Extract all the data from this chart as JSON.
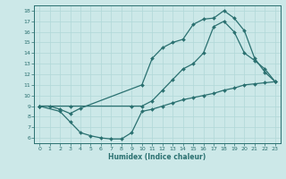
{
  "xlabel": "Humidex (Indice chaleur)",
  "bg_color": "#cce8e8",
  "line_color": "#2a7070",
  "grid_color": "#b0d8d8",
  "xlim": [
    -0.5,
    23.5
  ],
  "ylim": [
    5.5,
    18.5
  ],
  "xticks": [
    0,
    1,
    2,
    3,
    4,
    5,
    6,
    7,
    8,
    9,
    10,
    11,
    12,
    13,
    14,
    15,
    16,
    17,
    18,
    19,
    20,
    21,
    22,
    23
  ],
  "yticks": [
    6,
    7,
    8,
    9,
    10,
    11,
    12,
    13,
    14,
    15,
    16,
    17,
    18
  ],
  "line1_x": [
    0,
    1,
    2,
    3,
    4,
    10,
    11,
    12,
    13,
    14,
    15,
    16,
    17,
    18,
    19,
    20,
    21,
    22,
    23
  ],
  "line1_y": [
    9,
    9.0,
    8.7,
    8.3,
    8.8,
    11.0,
    13.5,
    14.5,
    15.0,
    15.3,
    16.7,
    17.2,
    17.3,
    18.0,
    17.3,
    16.1,
    13.5,
    12.2,
    11.3
  ],
  "line2_x": [
    0,
    3,
    9,
    10,
    11,
    12,
    13,
    14,
    15,
    16,
    17,
    18,
    19,
    20,
    21,
    22,
    23
  ],
  "line2_y": [
    9,
    9,
    9,
    9.0,
    9.5,
    10.5,
    11.5,
    12.5,
    13.0,
    14.0,
    16.5,
    17.0,
    16.0,
    14.0,
    13.3,
    12.5,
    11.3
  ],
  "line3_x": [
    0,
    2,
    3,
    4,
    5,
    6,
    7,
    8,
    9,
    10,
    11,
    12,
    13,
    14,
    15,
    16,
    17,
    18,
    19,
    20,
    21,
    22,
    23
  ],
  "line3_y": [
    9,
    8.5,
    7.5,
    6.5,
    6.2,
    6.0,
    5.9,
    5.9,
    6.5,
    8.5,
    8.7,
    9.0,
    9.3,
    9.6,
    9.8,
    10.0,
    10.2,
    10.5,
    10.7,
    11.0,
    11.1,
    11.2,
    11.3
  ]
}
